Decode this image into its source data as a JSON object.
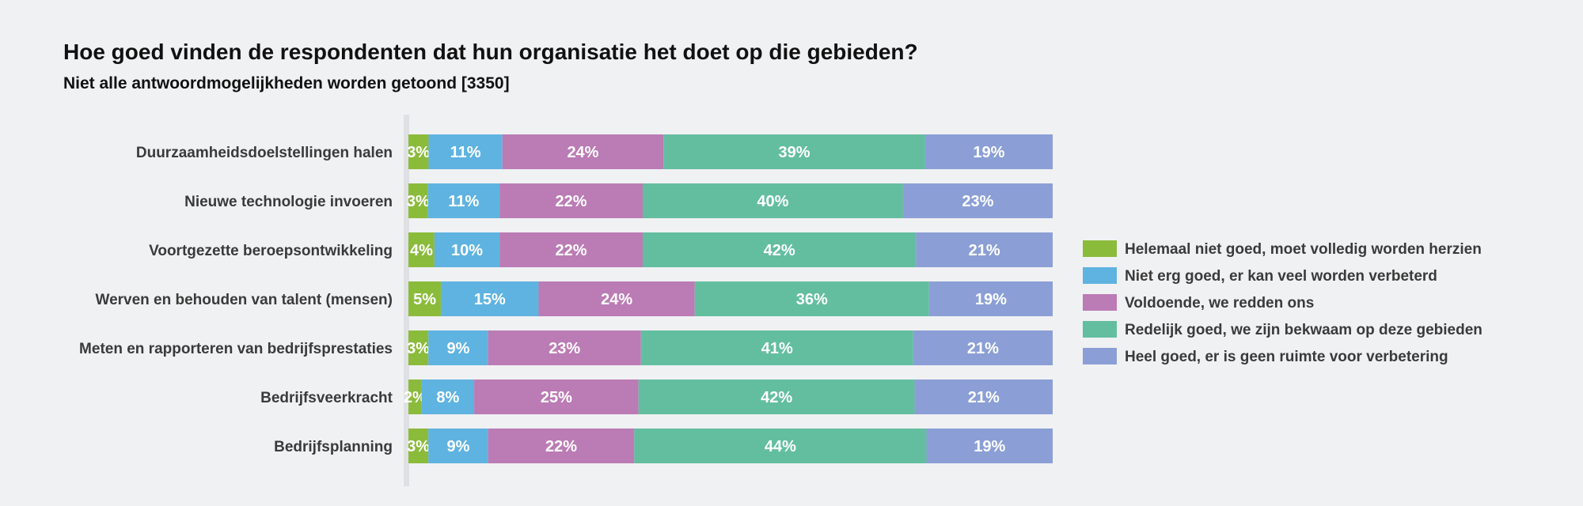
{
  "chart_data": {
    "type": "bar",
    "orientation": "horizontal",
    "stacked": true,
    "title": "Hoe goed vinden de respondenten dat hun organisatie het doet op die gebieden?",
    "subtitle": "Niet alle antwoordmogelijkheden worden getoond [3350]",
    "categories": [
      "Duurzaamheidsdoelstellingen halen",
      "Nieuwe technologie invoeren",
      "Voortgezette beroepsontwikkeling",
      "Werven en behouden van talent (mensen)",
      "Meten en rapporteren van bedrijfsprestaties",
      "Bedrijfsveerkracht",
      "Bedrijfsplanning"
    ],
    "series": [
      {
        "name": "Helemaal niet goed, moet volledig worden herzien",
        "color": "#8bbb3b",
        "values": [
          3,
          3,
          4,
          5,
          3,
          2,
          3
        ]
      },
      {
        "name": "Niet erg goed, er kan veel worden verbeterd",
        "color": "#5fb3e0",
        "values": [
          11,
          11,
          10,
          15,
          9,
          8,
          9
        ]
      },
      {
        "name": "Voldoende, we redden ons",
        "color": "#bb7bb5",
        "values": [
          24,
          22,
          22,
          24,
          23,
          25,
          22
        ]
      },
      {
        "name": "Redelijk goed, we zijn bekwaam op deze gebieden",
        "color": "#63be9f",
        "values": [
          39,
          40,
          42,
          36,
          41,
          42,
          44
        ]
      },
      {
        "name": "Heel goed, er is geen ruimte voor verbetering",
        "color": "#8b9fd6",
        "values": [
          19,
          23,
          21,
          19,
          21,
          21,
          19
        ]
      }
    ],
    "value_suffix": "%",
    "legend_position": "right",
    "grid": false
  }
}
